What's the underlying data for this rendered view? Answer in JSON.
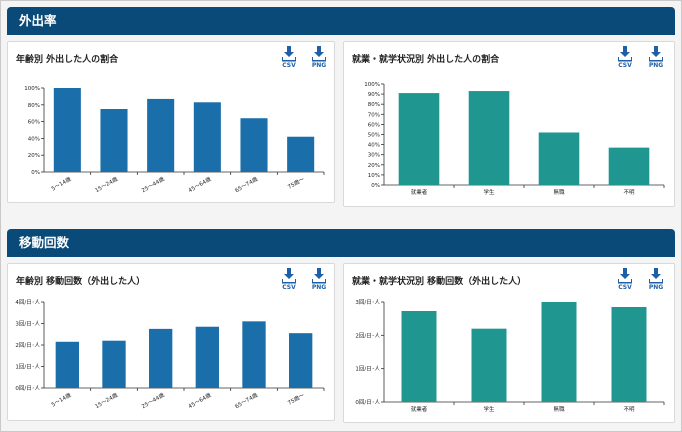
{
  "sections": [
    {
      "title": "外出率"
    },
    {
      "title": "移動回数"
    }
  ],
  "download": {
    "csv_label": "CSV",
    "png_label": "PNG"
  },
  "colors": {
    "header": "#0a4a78",
    "blue_bar": "#1a6ea9",
    "teal_bar": "#1f9690",
    "icon": "#1f5fa5"
  },
  "panels": [
    {
      "title": "年齢別 外出した人の割合"
    },
    {
      "title": "就業・就学状況別 外出した人の割合"
    },
    {
      "title": "年齢別 移動回数（外出した人）"
    },
    {
      "title": "就業・就学状況別 移動回数（外出した人）"
    }
  ],
  "chart_data": [
    {
      "type": "bar",
      "title": "年齢別 外出した人の割合",
      "categories": [
        "5～14歳",
        "15～24歳",
        "25～44歳",
        "45～64歳",
        "65～74歳",
        "75歳～"
      ],
      "values": [
        100,
        75,
        87,
        83,
        64,
        42
      ],
      "yticks": [
        "0%",
        "20%",
        "40%",
        "60%",
        "80%",
        "100%"
      ],
      "ylim": [
        0,
        100
      ],
      "grid": false
    },
    {
      "type": "bar",
      "title": "就業・就学状況別 外出した人の割合",
      "categories": [
        "就業者",
        "学生",
        "無職",
        "不明"
      ],
      "values": [
        91,
        93,
        52,
        37
      ],
      "yticks": [
        "0%",
        "10%",
        "20%",
        "30%",
        "40%",
        "50%",
        "60%",
        "70%",
        "80%",
        "90%",
        "100%"
      ],
      "ylim": [
        0,
        100
      ],
      "grid": false
    },
    {
      "type": "bar",
      "title": "年齢別 移動回数（外出した人）",
      "categories": [
        "5～14歳",
        "15～24歳",
        "25～44歳",
        "45～64歳",
        "65～74歳",
        "75歳～"
      ],
      "values": [
        2.15,
        2.2,
        2.75,
        2.85,
        3.1,
        2.55
      ],
      "yticks": [
        "0回/日･人",
        "1回/日･人",
        "2回/日･人",
        "3回/日･人",
        "4回/日･人"
      ],
      "ylim": [
        0,
        4
      ],
      "grid": false
    },
    {
      "type": "bar",
      "title": "就業・就学状況別 移動回数（外出した人）",
      "categories": [
        "就業者",
        "学生",
        "無職",
        "不明"
      ],
      "values": [
        2.73,
        2.2,
        3.0,
        2.85
      ],
      "yticks": [
        "0回/日･人",
        "1回/日･人",
        "2回/日･人",
        "3回/日･人"
      ],
      "ylim": [
        0,
        3
      ],
      "grid": false
    }
  ]
}
